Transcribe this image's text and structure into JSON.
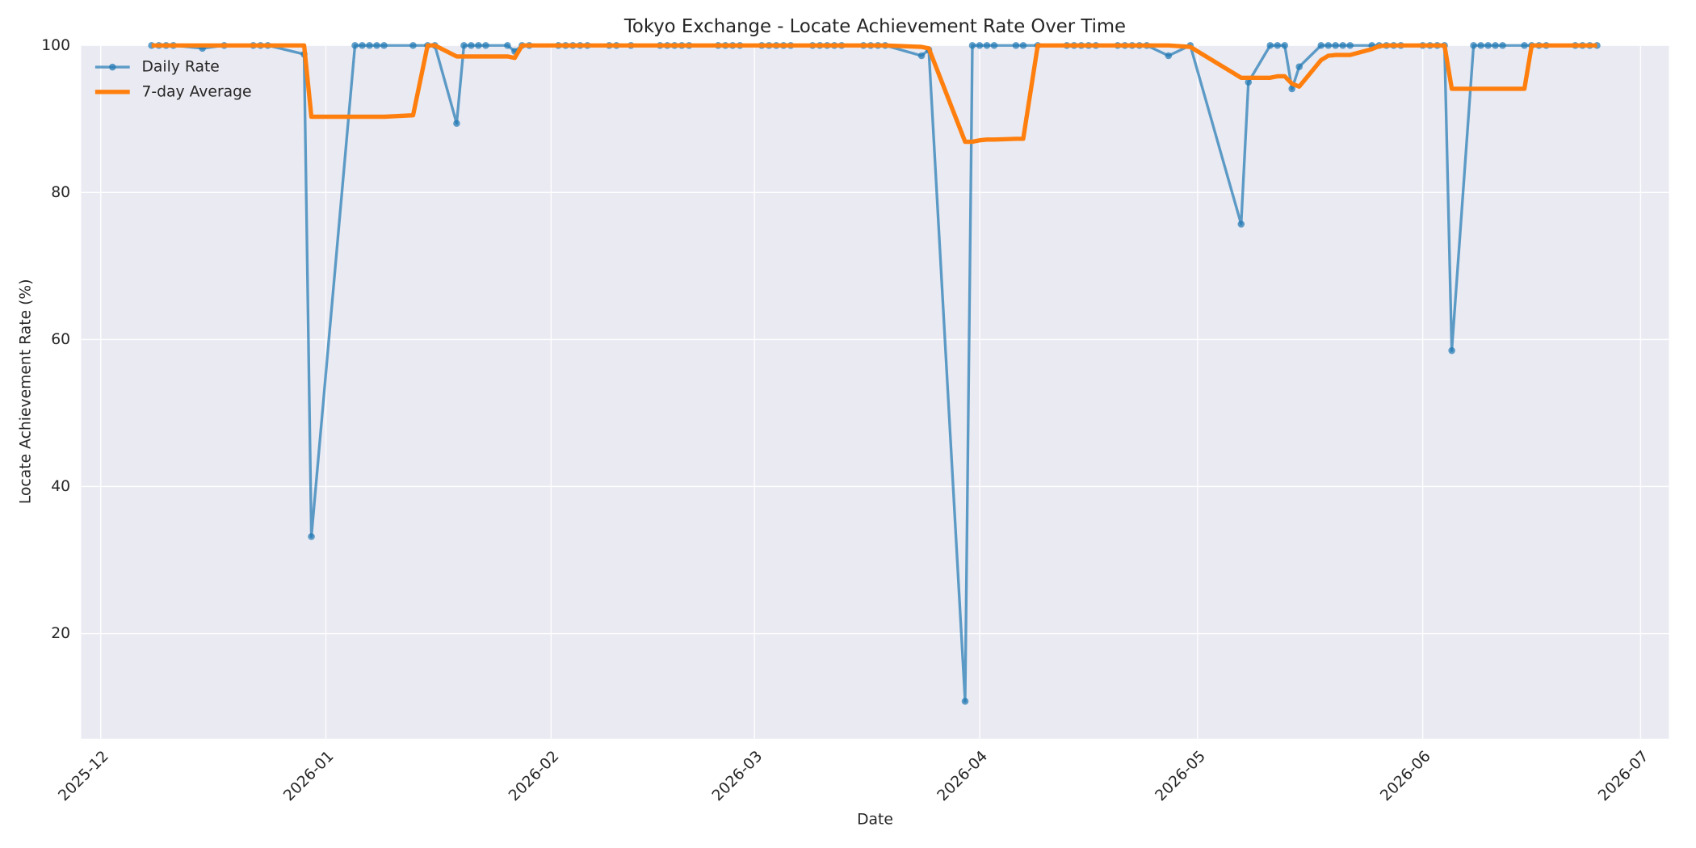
{
  "chart_data": {
    "type": "line",
    "title": "Tokyo Exchange - Locate Achievement Rate Over Time",
    "xlabel": "Date",
    "ylabel": "Locate Achievement Rate (%)",
    "x": [
      7,
      8,
      9,
      10,
      14,
      17,
      21,
      22,
      23,
      28,
      29,
      35,
      36,
      37,
      38,
      39,
      43,
      45,
      46,
      49,
      50,
      51,
      52,
      53,
      56,
      57,
      58,
      59,
      63,
      64,
      65,
      66,
      67,
      70,
      71,
      73,
      77,
      78,
      79,
      80,
      81,
      85,
      86,
      87,
      88,
      91,
      92,
      93,
      94,
      95,
      98,
      99,
      100,
      101,
      102,
      105,
      106,
      107,
      108,
      113,
      114,
      119,
      120,
      121,
      122,
      123,
      126,
      127,
      129,
      133,
      134,
      135,
      136,
      137,
      140,
      141,
      142,
      143,
      144,
      147,
      150,
      157,
      158,
      161,
      162,
      163,
      164,
      165,
      168,
      169,
      170,
      171,
      172,
      175,
      176,
      177,
      178,
      179,
      182,
      183,
      184,
      185,
      186,
      189,
      190,
      191,
      192,
      193,
      196,
      197,
      198,
      199,
      203,
      204,
      205,
      206
    ],
    "series": [
      {
        "name": "Daily Rate",
        "color": "#1f77b4",
        "marker": true,
        "values": [
          100,
          100,
          100,
          100,
          99.6,
          100,
          100,
          100,
          100,
          98.8,
          33.2,
          100,
          100,
          100,
          100,
          100,
          100,
          100,
          100,
          89.4,
          100,
          100,
          100,
          100,
          100,
          99.2,
          100,
          100,
          100,
          100,
          100,
          100,
          100,
          100,
          100,
          100,
          100,
          100,
          100,
          100,
          100,
          100,
          100,
          100,
          100,
          100,
          100,
          100,
          100,
          100,
          100,
          100,
          100,
          100,
          100,
          100,
          100,
          100,
          100,
          98.6,
          99.4,
          10.8,
          100,
          100,
          100,
          100,
          100,
          100,
          100,
          100,
          100,
          100,
          100,
          100,
          100,
          100,
          100,
          100,
          100,
          98.6,
          100,
          75.7,
          95,
          100,
          100,
          100,
          94.1,
          97.1,
          100,
          100,
          100,
          100,
          100,
          100,
          100,
          100,
          100,
          100,
          100,
          100,
          100,
          100,
          58.5,
          100,
          100,
          100,
          100,
          100,
          100,
          100,
          100,
          100,
          100,
          100,
          100,
          100
        ]
      },
      {
        "name": "7-day Average",
        "color": "#ff7f0e",
        "marker": false,
        "values": [
          100,
          100,
          100,
          100,
          100,
          100,
          100,
          100,
          100,
          100,
          90.3,
          90.3,
          90.3,
          90.3,
          90.3,
          90.3,
          90.5,
          100,
          100,
          98.5,
          98.5,
          98.5,
          98.5,
          98.5,
          98.5,
          98.3,
          100,
          100,
          100,
          100,
          100,
          100,
          100,
          100,
          100,
          100,
          100,
          100,
          100,
          100,
          100,
          100,
          100,
          100,
          100,
          100,
          100,
          100,
          100,
          100,
          100,
          100,
          100,
          100,
          100,
          100,
          100,
          100,
          100,
          99.8,
          99.6,
          86.9,
          86.9,
          87.1,
          87.2,
          87.2,
          87.3,
          87.3,
          100,
          100,
          100,
          100,
          100,
          100,
          100,
          100,
          100,
          100,
          100,
          100,
          99.8,
          95.6,
          95.6,
          95.6,
          95.8,
          95.8,
          94.8,
          94.4,
          98,
          98.6,
          98.7,
          98.7,
          98.7,
          99.5,
          99.9,
          100,
          100,
          100,
          100,
          100,
          100,
          100,
          94.1,
          94.1,
          94.1,
          94.1,
          94.1,
          94.1,
          94.1,
          100,
          100,
          100,
          100,
          100,
          100,
          100
        ]
      }
    ],
    "xlim": [
      -2.7,
      215.9
    ],
    "xticks": [
      {
        "value": 0,
        "label": "2025-12"
      },
      {
        "value": 31,
        "label": "2026-01"
      },
      {
        "value": 62,
        "label": "2026-02"
      },
      {
        "value": 90,
        "label": "2026-03"
      },
      {
        "value": 121,
        "label": "2026-04"
      },
      {
        "value": 151,
        "label": "2026-05"
      },
      {
        "value": 182,
        "label": "2026-06"
      },
      {
        "value": 212,
        "label": "2026-07"
      }
    ],
    "ylim": [
      5.7,
      100
    ],
    "yticks": [
      20,
      40,
      60,
      80,
      100
    ],
    "grid": true,
    "legend": "upper left"
  }
}
